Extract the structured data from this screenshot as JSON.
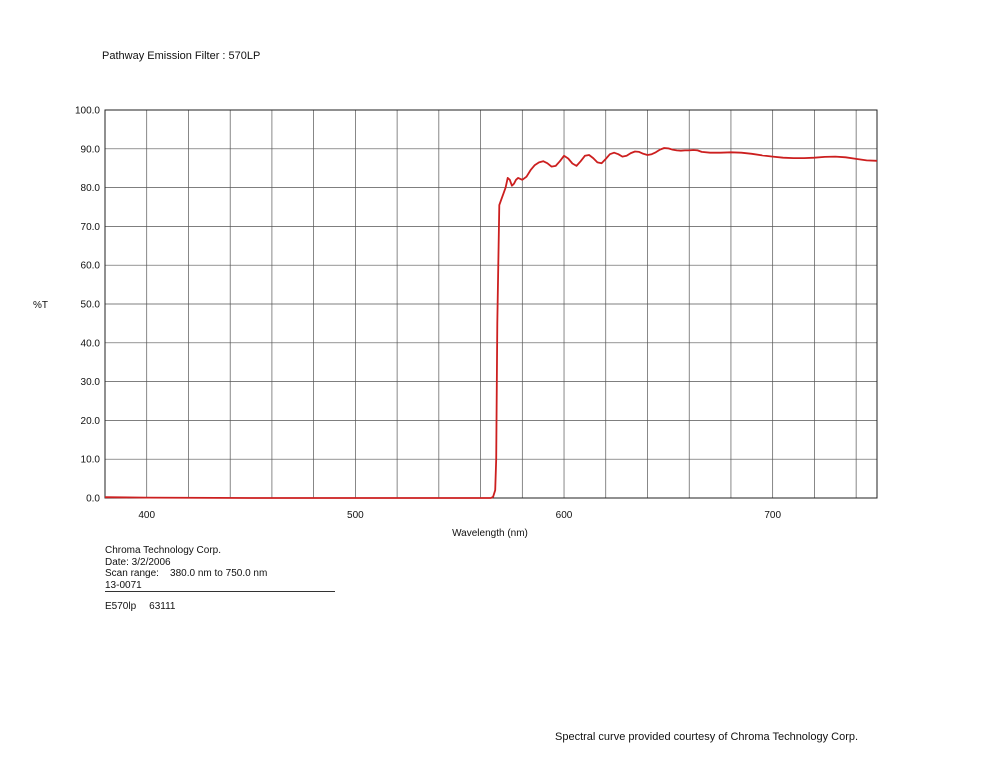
{
  "header": {
    "title": "Pathway Emission Filter : 570LP"
  },
  "chart_data": {
    "type": "line",
    "title": "Pathway Emission Filter : 570LP",
    "xlabel": "Wavelength (nm)",
    "ylabel": "%T",
    "xlim": [
      380,
      750
    ],
    "ylim": [
      0,
      100
    ],
    "x_ticks": [
      400,
      500,
      600,
      700
    ],
    "y_ticks": [
      "0.0",
      "10.0",
      "20.0",
      "30.0",
      "40.0",
      "50.0",
      "60.0",
      "70.0",
      "80.0",
      "90.0",
      "100.0"
    ],
    "grid": true,
    "line_color": "#cc1f1f",
    "series": [
      {
        "x": [
          380,
          400,
          450,
          500,
          550,
          565,
          566,
          567,
          567.5,
          568,
          569,
          570,
          571,
          572,
          573,
          574,
          575,
          576,
          577,
          578,
          580,
          582,
          584,
          586,
          588,
          590,
          592,
          594,
          596,
          598,
          600,
          602,
          604,
          606,
          608,
          610,
          612,
          614,
          616,
          618,
          620,
          622,
          624,
          626,
          628,
          630,
          632,
          634,
          636,
          638,
          640,
          642,
          644,
          646,
          648,
          650,
          652,
          654,
          656,
          658,
          660,
          662,
          664,
          666,
          670,
          675,
          680,
          685,
          690,
          695,
          700,
          705,
          710,
          715,
          720,
          725,
          730,
          735,
          740,
          745,
          750
        ],
        "y": [
          0.2,
          0.1,
          0.0,
          0.0,
          0.0,
          0.0,
          0.3,
          2.0,
          10.0,
          45.0,
          75.5,
          77.0,
          78.5,
          80.0,
          82.5,
          82.0,
          80.5,
          81.0,
          82.0,
          82.5,
          82.0,
          82.8,
          84.5,
          85.8,
          86.5,
          86.8,
          86.3,
          85.4,
          85.6,
          86.8,
          88.2,
          87.5,
          86.2,
          85.6,
          86.8,
          88.2,
          88.4,
          87.6,
          86.5,
          86.3,
          87.4,
          88.6,
          89.0,
          88.6,
          88.0,
          88.2,
          88.9,
          89.3,
          89.2,
          88.7,
          88.4,
          88.6,
          89.1,
          89.8,
          90.2,
          90.1,
          89.8,
          89.6,
          89.5,
          89.6,
          89.6,
          89.7,
          89.6,
          89.2,
          89.0,
          89.0,
          89.1,
          89.0,
          88.7,
          88.3,
          88.0,
          87.7,
          87.6,
          87.6,
          87.7,
          87.9,
          88.0,
          87.8,
          87.4,
          87.0,
          86.9
        ]
      }
    ]
  },
  "info": {
    "company": "Chroma Technology Corp.",
    "date": "Date: 3/2/2006",
    "scan_range": "Scan range:    380.0 nm to 750.0 nm",
    "code": "13-0071"
  },
  "part": {
    "name": "E570lp",
    "number": "63111"
  },
  "footer": {
    "credit": "Spectral curve provided courtesy of Chroma Technology Corp."
  }
}
